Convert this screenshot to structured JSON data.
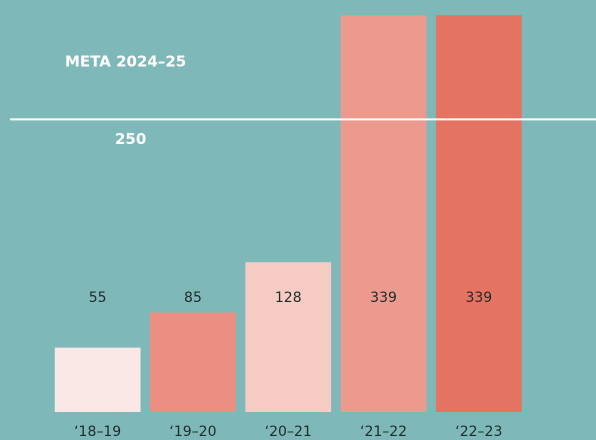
{
  "chart_data": {
    "type": "bar",
    "categories": [
      "‘18–19",
      "‘19–20",
      "‘20–21",
      "‘21–22",
      "‘22–23"
    ],
    "values": [
      55,
      85,
      128,
      339,
      339
    ],
    "colors": [
      "#fae8e6",
      "#ec8f82",
      "#f6cbc4",
      "#eb9a8d",
      "#e57361"
    ],
    "ylim": [
      0,
      352
    ],
    "target": {
      "label": "META 2024–25",
      "value": 250
    }
  }
}
